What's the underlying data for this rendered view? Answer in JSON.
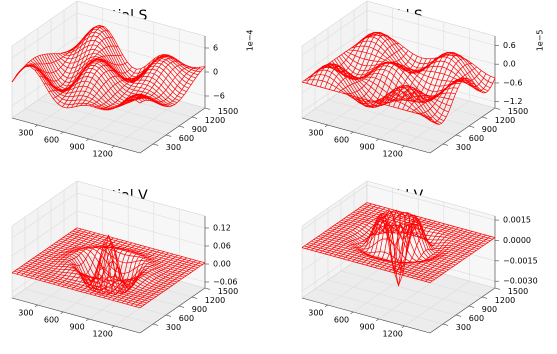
{
  "chart_data": [
    {
      "type": "surface3d",
      "title": "Potential S",
      "color": "#ff0000",
      "grid": true,
      "xlim": [
        0,
        1500
      ],
      "ylim": [
        0,
        1500
      ],
      "zlim": [
        -9,
        9
      ],
      "xticks": [
        300,
        600,
        900,
        1200
      ],
      "yticks": [
        300,
        600,
        900,
        1200,
        1500
      ],
      "zticks": [
        {
          "value": -6,
          "label": "−6"
        },
        0,
        6
      ],
      "z_offset_label": "1e−4"
    },
    {
      "type": "surface3d",
      "title": "Field S",
      "color": "#ff0000",
      "grid": true,
      "xlim": [
        0,
        1500
      ],
      "ylim": [
        0,
        1500
      ],
      "zlim": [
        -1.4,
        0.9
      ],
      "xticks": [
        300,
        600,
        900,
        1200
      ],
      "yticks": [
        300,
        600,
        900,
        1200,
        1500
      ],
      "zticks": [
        {
          "value": -1.2,
          "label": "−1.2"
        },
        {
          "value": -0.6,
          "label": "−0.6"
        },
        {
          "value": 0,
          "label": "0.0"
        },
        0.6
      ],
      "z_offset_label": "1e−5"
    },
    {
      "type": "surface3d",
      "title": "Potential V",
      "color": "#ff0000",
      "grid": true,
      "xlim": [
        0,
        1500
      ],
      "ylim": [
        0,
        1500
      ],
      "zlim": [
        -0.08,
        0.16
      ],
      "xticks": [
        300,
        600,
        900,
        1200
      ],
      "yticks": [
        300,
        600,
        900,
        1200,
        1500
      ],
      "zticks": [
        {
          "value": -0.06,
          "label": "−0.06"
        },
        {
          "value": 0,
          "label": "0.00"
        },
        0.06,
        0.12
      ]
    },
    {
      "type": "surface3d",
      "title": "Field V",
      "color": "#ff0000",
      "grid": true,
      "xlim": [
        0,
        1500
      ],
      "ylim": [
        0,
        1500
      ],
      "zlim": [
        -0.0035,
        0.0018
      ],
      "xticks": [
        300,
        600,
        900,
        1200
      ],
      "yticks": [
        300,
        600,
        900,
        1200,
        1500
      ],
      "zticks": [
        {
          "value": -0.003,
          "label": "−0.0030"
        },
        {
          "value": -0.0015,
          "label": "−0.0015"
        },
        {
          "value": 0,
          "label": "0.0000"
        },
        0.0015
      ]
    }
  ]
}
